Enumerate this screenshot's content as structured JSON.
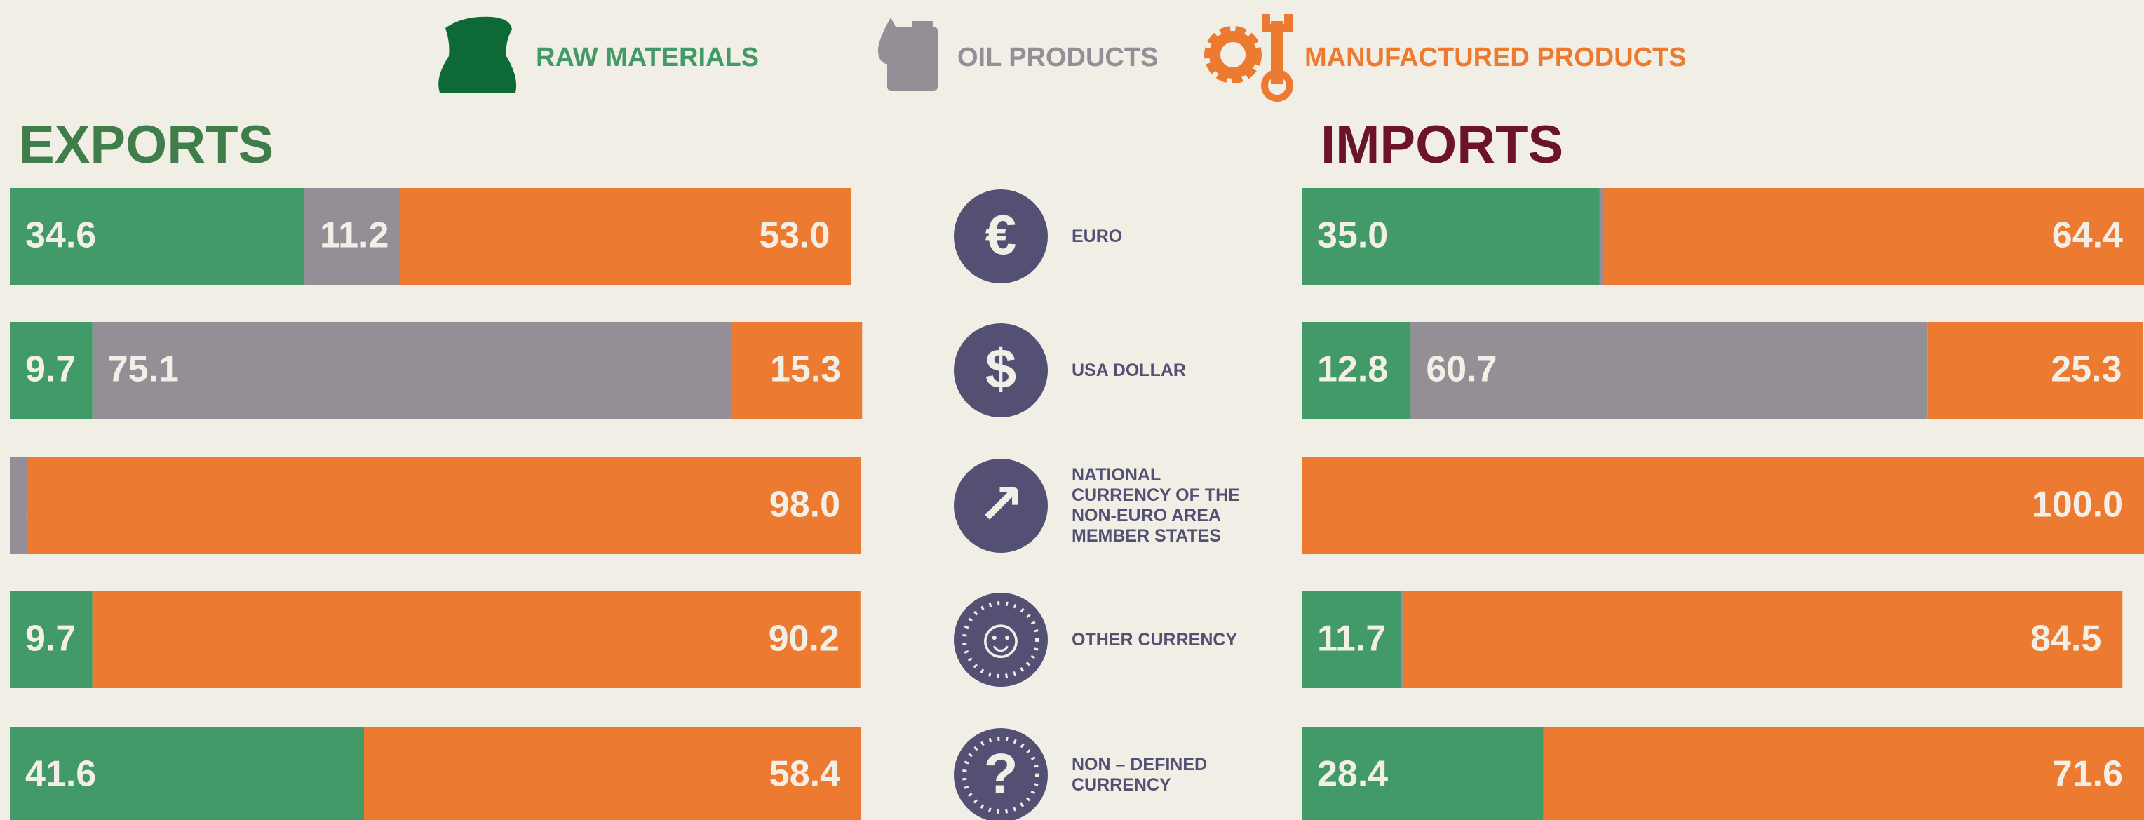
{
  "categories": [
    "EURO",
    "USA DOLLAR",
    "NATIONAL CURRENCY OF THE NON-EURO AREA MEMBER STATES",
    "OTHER CURRENCY",
    "NON – DEFINED CURRENCY"
  ],
  "chart_data": [
    {
      "type": "stacked-bar",
      "orientation": "horizontal",
      "title": "EXPORTS",
      "title_color": "#3f7d4a",
      "xlim": [
        0,
        100
      ],
      "series": [
        {
          "name": "RAW MATERIALS",
          "color": "#419a68",
          "values": [
            34.6,
            9.7,
            null,
            9.7,
            41.6
          ],
          "value_labels": [
            "34.6",
            "9.7",
            null,
            "9.7",
            "41.6"
          ]
        },
        {
          "name": "OIL PRODUCTS",
          "color": "#948f96",
          "values": [
            11.2,
            75.1,
            2.0,
            null,
            null
          ],
          "value_labels": [
            "11.2",
            "75.1",
            "2.0",
            null,
            null
          ]
        },
        {
          "name": "MANUFACTURED PRODUCTS",
          "color": "#ec7a30",
          "values": [
            53.0,
            15.3,
            98.0,
            90.2,
            58.4
          ],
          "value_labels": [
            "53.0",
            "15.3",
            "98.0",
            "90.2",
            "58.4"
          ]
        }
      ]
    },
    {
      "type": "stacked-bar",
      "orientation": "horizontal",
      "title": "IMPORTS",
      "title_color": "#6b1428",
      "xlim": [
        0,
        100
      ],
      "series": [
        {
          "color": "#419a68",
          "values": [
            35.0,
            12.8,
            null,
            11.7,
            28.4
          ],
          "value_labels": [
            "35.0",
            "12.8",
            null,
            "11.7",
            "28.4"
          ]
        },
        {
          "color": "#948f96",
          "values": [
            0.4,
            60.7,
            null,
            0.2,
            null
          ],
          "value_labels": [
            "0.4",
            "60.7",
            null,
            "0.2",
            null
          ]
        },
        {
          "color": "#ec7a30",
          "values": [
            64.4,
            25.3,
            100.0,
            84.5,
            71.6
          ],
          "value_labels": [
            "64.4",
            "25.3",
            "100.0",
            "84.5",
            "71.6"
          ]
        }
      ]
    }
  ]
}
